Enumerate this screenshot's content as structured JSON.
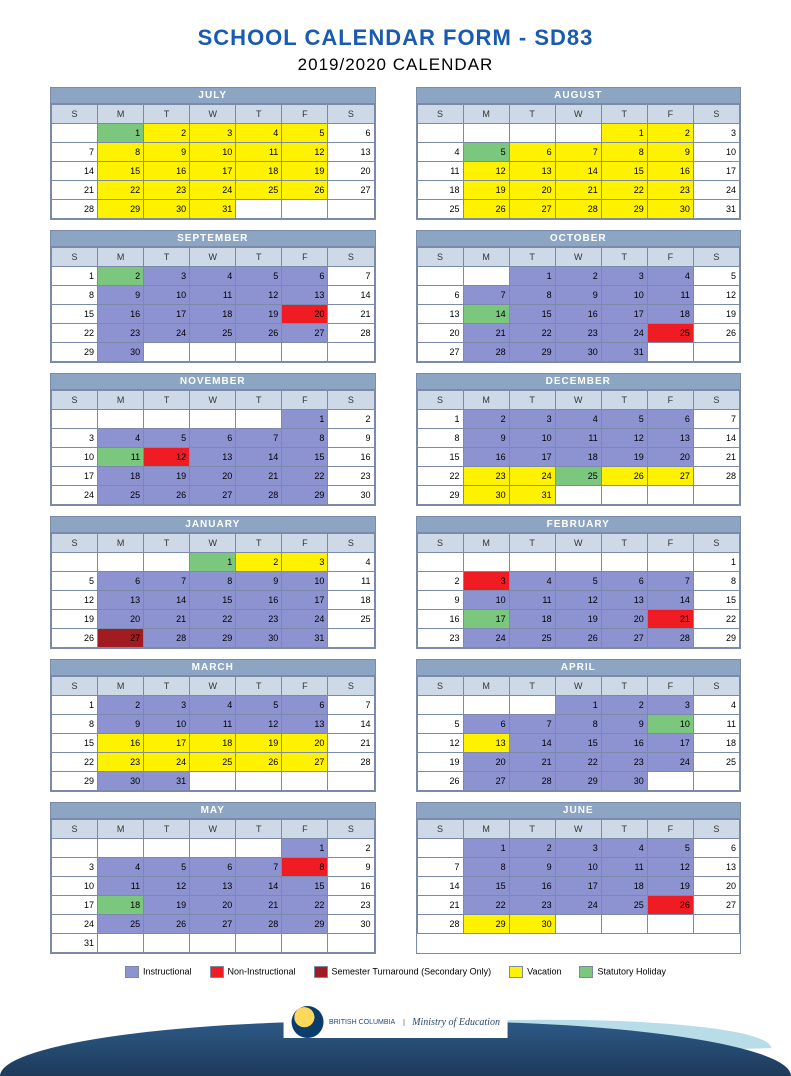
{
  "title": "SCHOOL CALENDAR FORM - SD83",
  "subtitle": "2019/2020 CALENDAR",
  "dayHeaders": [
    "S",
    "M",
    "T",
    "W",
    "T",
    "F",
    "S"
  ],
  "colors": {
    "instructional": "#8d92d1",
    "noninstructional": "#ef1c24",
    "semester": "#a01c20",
    "vacation": "#fff200",
    "statutory": "#7ac77d",
    "blank": "#ffffff",
    "header": "#8ba5c3",
    "dayhdr": "#cdd9e6",
    "border": "#7a8aa8",
    "titleColor": "#1a5ab0"
  },
  "legend": [
    {
      "label": "Instructional",
      "color": "#8d92d1"
    },
    {
      "label": "Non-Instructional",
      "color": "#ef1c24"
    },
    {
      "label": "Semester Turnaround (Secondary Only)",
      "color": "#a01c20"
    },
    {
      "label": "Vacation",
      "color": "#fff200"
    },
    {
      "label": "Statutory Holiday",
      "color": "#7ac77d"
    }
  ],
  "footer": {
    "org": "BRITISH\nCOLUMBIA",
    "ministry": "Ministry of\nEducation"
  },
  "months": [
    {
      "name": "JULY",
      "start": 1,
      "days": 31,
      "codes": {
        "1": "s",
        "2": "v",
        "3": "v",
        "4": "v",
        "5": "v",
        "8": "v",
        "9": "v",
        "10": "v",
        "11": "v",
        "12": "v",
        "15": "v",
        "16": "v",
        "17": "v",
        "18": "v",
        "19": "v",
        "22": "v",
        "23": "v",
        "24": "v",
        "25": "v",
        "26": "v",
        "29": "v",
        "30": "v",
        "31": "v"
      }
    },
    {
      "name": "AUGUST",
      "start": 4,
      "days": 31,
      "codes": {
        "1": "v",
        "2": "v",
        "5": "s",
        "6": "v",
        "7": "v",
        "8": "v",
        "9": "v",
        "12": "v",
        "13": "v",
        "14": "v",
        "15": "v",
        "16": "v",
        "19": "v",
        "20": "v",
        "21": "v",
        "22": "v",
        "23": "v",
        "26": "v",
        "27": "v",
        "28": "v",
        "29": "v",
        "30": "v"
      }
    },
    {
      "name": "SEPTEMBER",
      "start": 0,
      "days": 30,
      "codes": {
        "2": "s",
        "3": "i",
        "4": "i",
        "5": "i",
        "6": "i",
        "9": "i",
        "10": "i",
        "11": "i",
        "12": "i",
        "13": "i",
        "16": "i",
        "17": "i",
        "18": "i",
        "19": "i",
        "20": "n",
        "23": "i",
        "24": "i",
        "25": "i",
        "26": "i",
        "27": "i",
        "30": "i"
      }
    },
    {
      "name": "OCTOBER",
      "start": 2,
      "days": 31,
      "codes": {
        "1": "i",
        "2": "i",
        "3": "i",
        "4": "i",
        "7": "i",
        "8": "i",
        "9": "i",
        "10": "i",
        "11": "i",
        "14": "s",
        "15": "i",
        "16": "i",
        "17": "i",
        "18": "i",
        "21": "i",
        "22": "i",
        "23": "i",
        "24": "i",
        "25": "n",
        "28": "i",
        "29": "i",
        "30": "i",
        "31": "i"
      }
    },
    {
      "name": "NOVEMBER",
      "start": 5,
      "days": 30,
      "codes": {
        "1": "i",
        "4": "i",
        "5": "i",
        "6": "i",
        "7": "i",
        "8": "i",
        "11": "s",
        "12": "n",
        "13": "i",
        "14": "i",
        "15": "i",
        "18": "i",
        "19": "i",
        "20": "i",
        "21": "i",
        "22": "i",
        "25": "i",
        "26": "i",
        "27": "i",
        "28": "i",
        "29": "i"
      }
    },
    {
      "name": "DECEMBER",
      "start": 0,
      "days": 31,
      "codes": {
        "2": "i",
        "3": "i",
        "4": "i",
        "5": "i",
        "6": "i",
        "9": "i",
        "10": "i",
        "11": "i",
        "12": "i",
        "13": "i",
        "16": "i",
        "17": "i",
        "18": "i",
        "19": "i",
        "20": "i",
        "23": "v",
        "24": "v",
        "25": "s",
        "26": "v",
        "27": "v",
        "30": "v",
        "31": "v"
      }
    },
    {
      "name": "JANUARY",
      "start": 3,
      "days": 31,
      "codes": {
        "1": "s",
        "2": "v",
        "3": "v",
        "6": "i",
        "7": "i",
        "8": "i",
        "9": "i",
        "10": "i",
        "13": "i",
        "14": "i",
        "15": "i",
        "16": "i",
        "17": "i",
        "20": "i",
        "21": "i",
        "22": "i",
        "23": "i",
        "24": "i",
        "27": "t",
        "28": "i",
        "29": "i",
        "30": "i",
        "31": "i"
      }
    },
    {
      "name": "FEBRUARY",
      "start": 6,
      "days": 29,
      "codes": {
        "3": "n",
        "4": "i",
        "5": "i",
        "6": "i",
        "7": "i",
        "10": "i",
        "11": "i",
        "12": "i",
        "13": "i",
        "14": "i",
        "17": "s",
        "18": "i",
        "19": "i",
        "20": "i",
        "21": "n",
        "24": "i",
        "25": "i",
        "26": "i",
        "27": "i",
        "28": "i"
      }
    },
    {
      "name": "MARCH",
      "start": 0,
      "days": 31,
      "codes": {
        "2": "i",
        "3": "i",
        "4": "i",
        "5": "i",
        "6": "i",
        "9": "i",
        "10": "i",
        "11": "i",
        "12": "i",
        "13": "i",
        "16": "v",
        "17": "v",
        "18": "v",
        "19": "v",
        "20": "v",
        "23": "v",
        "24": "v",
        "25": "v",
        "26": "v",
        "27": "v",
        "30": "i",
        "31": "i"
      }
    },
    {
      "name": "APRIL",
      "start": 3,
      "days": 30,
      "codes": {
        "1": "i",
        "2": "i",
        "3": "i",
        "6": "i",
        "7": "i",
        "8": "i",
        "9": "i",
        "10": "s",
        "13": "v",
        "14": "i",
        "15": "i",
        "16": "i",
        "17": "i",
        "20": "i",
        "21": "i",
        "22": "i",
        "23": "i",
        "24": "i",
        "27": "i",
        "28": "i",
        "29": "i",
        "30": "i"
      }
    },
    {
      "name": "MAY",
      "start": 5,
      "days": 31,
      "codes": {
        "1": "i",
        "4": "i",
        "5": "i",
        "6": "i",
        "7": "i",
        "8": "n",
        "11": "i",
        "12": "i",
        "13": "i",
        "14": "i",
        "15": "i",
        "18": "s",
        "19": "i",
        "20": "i",
        "21": "i",
        "22": "i",
        "25": "i",
        "26": "i",
        "27": "i",
        "28": "i",
        "29": "i"
      }
    },
    {
      "name": "JUNE",
      "start": 1,
      "days": 30,
      "codes": {
        "1": "i",
        "2": "i",
        "3": "i",
        "4": "i",
        "5": "i",
        "8": "i",
        "9": "i",
        "10": "i",
        "11": "i",
        "12": "i",
        "15": "i",
        "16": "i",
        "17": "i",
        "18": "i",
        "19": "i",
        "22": "i",
        "23": "i",
        "24": "i",
        "25": "i",
        "26": "n",
        "29": "v",
        "30": "v"
      }
    }
  ],
  "codeColors": {
    "i": "#8d92d1",
    "n": "#ef1c24",
    "t": "#a01c20",
    "v": "#fff200",
    "s": "#7ac77d"
  }
}
